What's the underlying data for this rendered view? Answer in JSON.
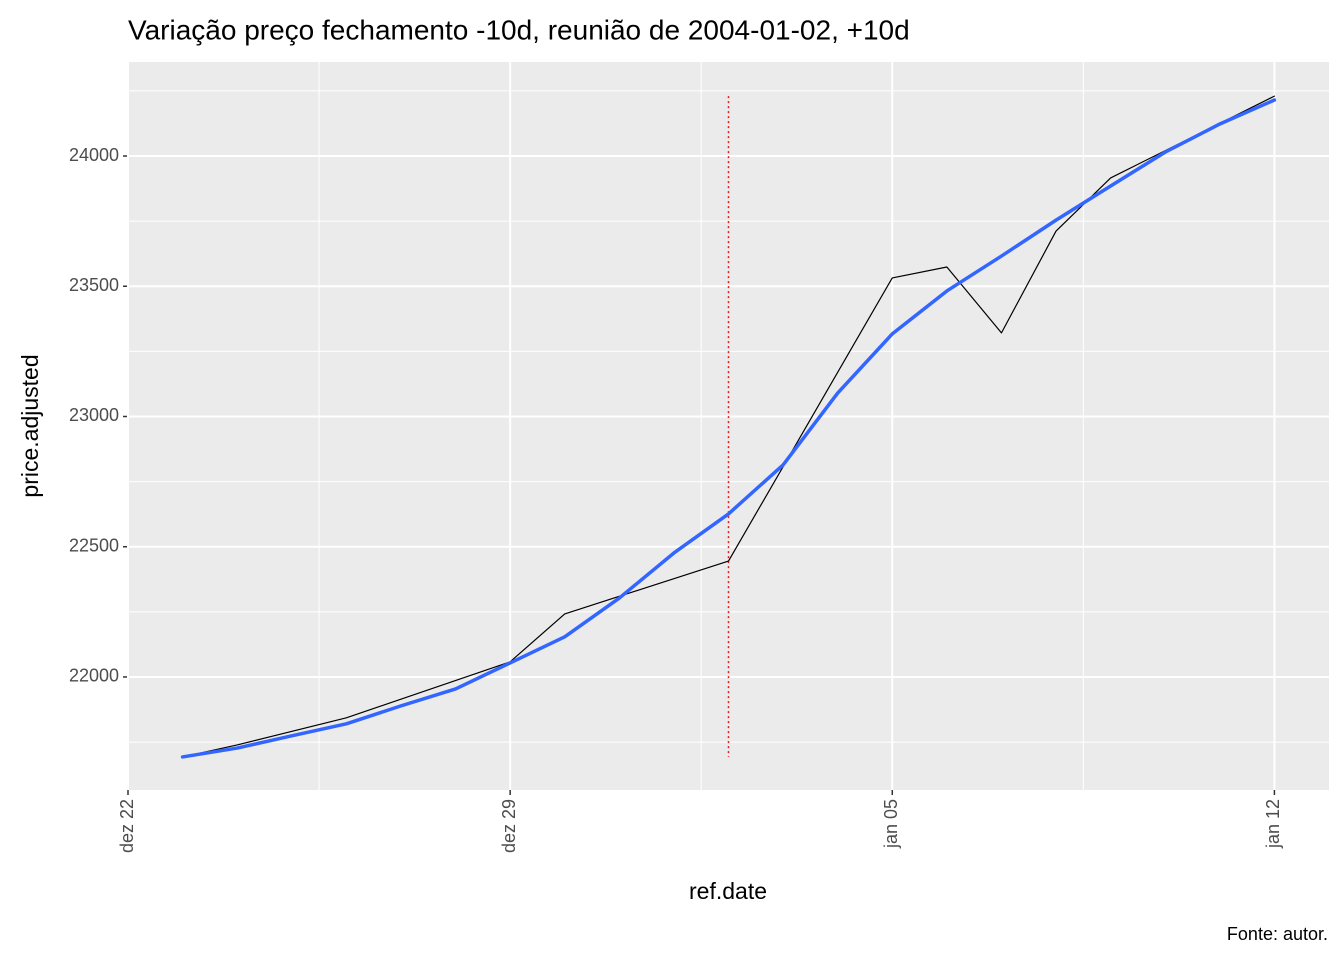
{
  "chart_data": {
    "type": "line",
    "title": "Variação preço fechamento -10d, reunião de 2004-01-02, +10d",
    "x_label": "ref.date",
    "y_label": "price.adjusted",
    "caption": "Fonte: autor.",
    "xlim": [
      -11,
      11
    ],
    "xticks": [
      {
        "value": -11,
        "label": "dez 22"
      },
      {
        "value": -4,
        "label": "dez 29"
      },
      {
        "value": 3,
        "label": "jan 05"
      },
      {
        "value": 10,
        "label": "jan 12"
      }
    ],
    "ylim": [
      21566,
      24361
    ],
    "yticks": [
      22000,
      22500,
      23000,
      23500,
      24000
    ],
    "grid": true,
    "vline": {
      "x": 0,
      "color": "#e41a1c"
    },
    "series": [
      {
        "color": "#000000",
        "width": 1.2,
        "x": [
          -10,
          -9,
          -7,
          -4,
          -3,
          0,
          3,
          4,
          5,
          6,
          7,
          10
        ],
        "values": [
          21693,
          21739,
          21843,
          22058,
          22242,
          22445,
          23532,
          23574,
          23321,
          23712,
          23916,
          24230
        ]
      },
      {
        "color": "#3366ff",
        "width": 3.5,
        "x": [
          -10,
          -9,
          -8,
          -7,
          -6,
          -5,
          -4,
          -3,
          -2,
          -1,
          0,
          1,
          2,
          3,
          4,
          5,
          6,
          7,
          8,
          9,
          10
        ],
        "values": [
          21693,
          21727,
          21774,
          21820,
          21889,
          21954,
          22054,
          22154,
          22303,
          22476,
          22626,
          22814,
          23090,
          23317,
          23482,
          23616,
          23754,
          23885,
          24015,
          24123,
          24215
        ]
      }
    ]
  }
}
